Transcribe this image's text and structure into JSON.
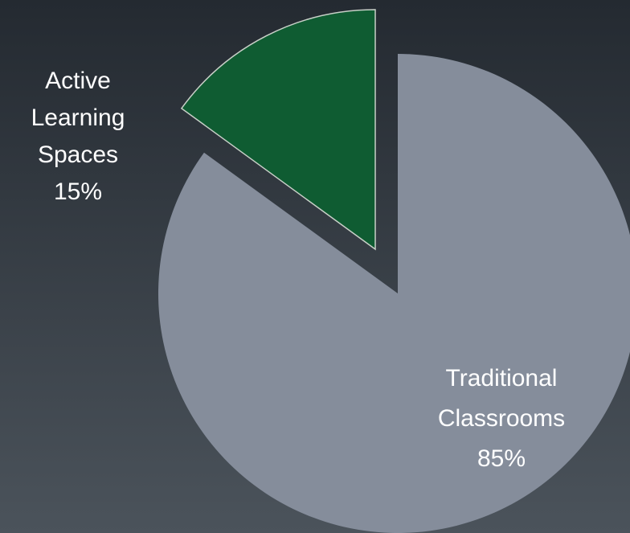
{
  "chart_data": {
    "type": "pie",
    "categories": [
      "Active Learning Spaces",
      "Traditional Classrooms"
    ],
    "values": [
      15,
      85
    ],
    "value_labels": [
      "15%",
      "85%"
    ],
    "colors": [
      "#0f5c32",
      "#858d9b"
    ]
  }
}
